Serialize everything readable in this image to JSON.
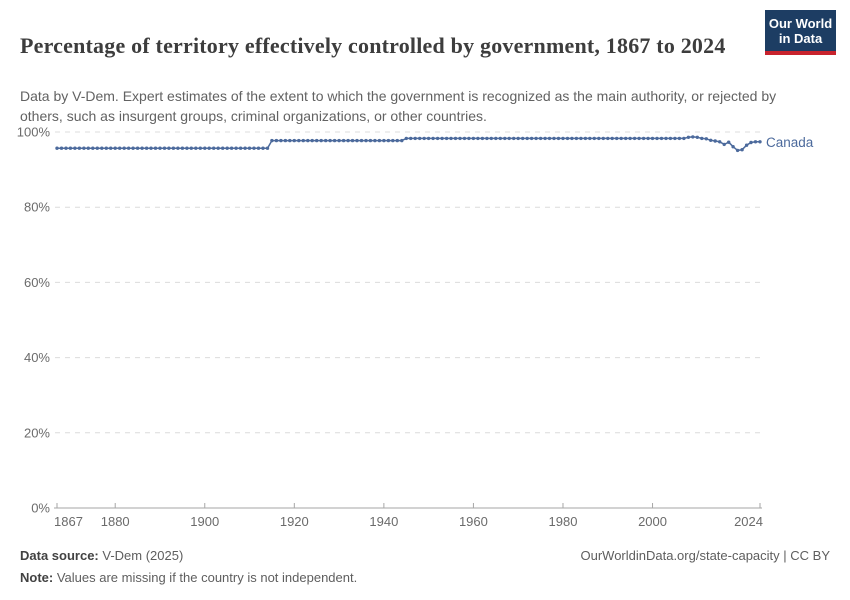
{
  "header": {
    "title": "Percentage of territory effectively controlled by government, 1867 to 2024",
    "subtitle": "Data by V-Dem. Expert estimates of the extent to which the government is recognized as the main authority, or rejected by others, such as insurgent groups, criminal organizations, or other countries.",
    "logo": {
      "line1": "Our World",
      "line2": "in Data",
      "bg": "#1d3d63",
      "accent": "#c8232d"
    }
  },
  "chart_data": {
    "type": "line",
    "title": "Percentage of territory effectively controlled by government, 1867 to 2024",
    "xlabel": "",
    "ylabel": "",
    "xlim": [
      1867,
      2024
    ],
    "ylim": [
      0,
      100
    ],
    "xticks": [
      1867,
      1880,
      1900,
      1920,
      1940,
      1960,
      1980,
      2000,
      2024
    ],
    "yticks": [
      0,
      20,
      40,
      60,
      80,
      100
    ],
    "ytick_suffix": "%",
    "grid": "horizontal-dashed",
    "legend_position": "end-of-line",
    "grid_color": "#dcdcdc",
    "axis_color": "#a6a6a6",
    "tick_color": "#6b6b6b",
    "years": {
      "start": 1867,
      "end": 2024,
      "step": 1
    },
    "series": [
      {
        "name": "Canada",
        "color": "#4c6a9c",
        "values": [
          95.7,
          95.7,
          95.7,
          95.7,
          95.7,
          95.7,
          95.7,
          95.7,
          95.7,
          95.7,
          95.7,
          95.7,
          95.7,
          95.7,
          95.7,
          95.7,
          95.7,
          95.7,
          95.7,
          95.7,
          95.7,
          95.7,
          95.7,
          95.7,
          95.7,
          95.7,
          95.7,
          95.7,
          95.7,
          95.7,
          95.7,
          95.7,
          95.7,
          95.7,
          95.7,
          95.7,
          95.7,
          95.7,
          95.7,
          95.7,
          95.7,
          95.7,
          95.7,
          95.7,
          95.7,
          95.7,
          95.7,
          95.7,
          97.7,
          97.7,
          97.7,
          97.7,
          97.7,
          97.7,
          97.7,
          97.7,
          97.7,
          97.7,
          97.7,
          97.7,
          97.7,
          97.7,
          97.7,
          97.7,
          97.7,
          97.7,
          97.7,
          97.7,
          97.7,
          97.7,
          97.7,
          97.7,
          97.7,
          97.7,
          97.7,
          97.7,
          97.7,
          97.7,
          98.3,
          98.3,
          98.3,
          98.3,
          98.3,
          98.3,
          98.3,
          98.3,
          98.3,
          98.3,
          98.3,
          98.3,
          98.3,
          98.3,
          98.3,
          98.3,
          98.3,
          98.3,
          98.3,
          98.3,
          98.3,
          98.3,
          98.3,
          98.3,
          98.3,
          98.3,
          98.3,
          98.3,
          98.3,
          98.3,
          98.3,
          98.3,
          98.3,
          98.3,
          98.3,
          98.3,
          98.3,
          98.3,
          98.3,
          98.3,
          98.3,
          98.3,
          98.3,
          98.3,
          98.3,
          98.3,
          98.3,
          98.3,
          98.3,
          98.3,
          98.3,
          98.3,
          98.3,
          98.3,
          98.3,
          98.3,
          98.3,
          98.3,
          98.3,
          98.3,
          98.3,
          98.3,
          98.3,
          98.6,
          98.7,
          98.6,
          98.3,
          98.2,
          97.8,
          97.6,
          97.4,
          96.7,
          97.3,
          96.1,
          95.1,
          95.3,
          96.5,
          97.2,
          97.4,
          97.4
        ]
      }
    ]
  },
  "footer": {
    "source_label": "Data source:",
    "source_value": " V-Dem (2025)",
    "note_label": "Note:",
    "note_value": " Values are missing if the country is not independent.",
    "credit": "OurWorldinData.org/state-capacity | CC BY"
  }
}
